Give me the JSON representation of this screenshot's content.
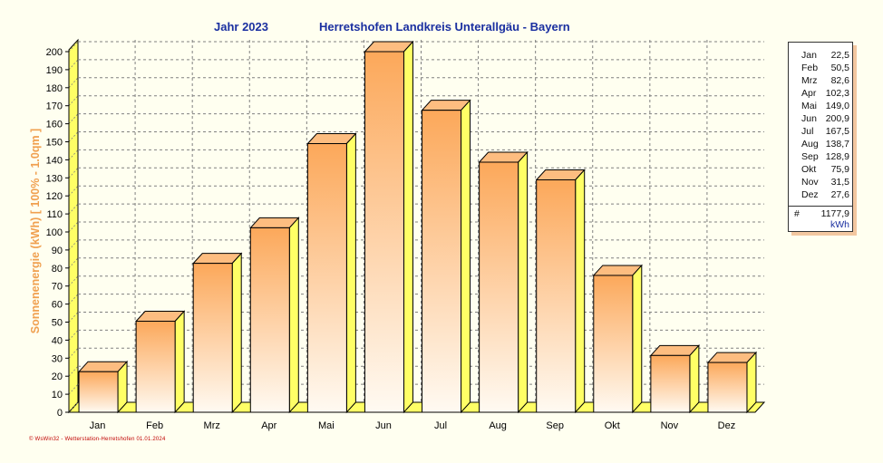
{
  "title": {
    "year": "Jahr  2023",
    "location": "Herretshofen Landkreis Unterallgäu - Bayern"
  },
  "footer": "© WsWin32  -  Wetterstation-Herretshofen  01.01.2024",
  "colors": {
    "title": "#1a2fa0",
    "ylabel": "#f0a050",
    "bar_top": "#fca85a",
    "bar_bottom": "#fffaf2",
    "floor": "#ffff66",
    "footer": "#c00000"
  },
  "chart_data": {
    "type": "bar",
    "categories": [
      "Jan",
      "Feb",
      "Mrz",
      "Apr",
      "Mai",
      "Jun",
      "Jul",
      "Aug",
      "Sep",
      "Okt",
      "Nov",
      "Dez"
    ],
    "values": [
      22.5,
      50.5,
      82.6,
      102.3,
      149.0,
      200.9,
      167.5,
      138.7,
      128.9,
      75.9,
      31.5,
      27.6
    ],
    "ylabel": "Sonnenenergie   (kWh)   [ 100% - 1.0qm ]",
    "ylim": [
      0,
      200
    ],
    "yticks": [
      0,
      10,
      20,
      30,
      40,
      50,
      60,
      70,
      80,
      90,
      100,
      110,
      120,
      130,
      140,
      150,
      160,
      170,
      180,
      190,
      200
    ],
    "grid": true,
    "legend_position": "right"
  },
  "legend": {
    "rows": [
      {
        "month": "Jan",
        "value": "22,5"
      },
      {
        "month": "Feb",
        "value": "50,5"
      },
      {
        "month": "Mrz",
        "value": "82,6"
      },
      {
        "month": "Apr",
        "value": "102,3"
      },
      {
        "month": "Mai",
        "value": "149,0"
      },
      {
        "month": "Jun",
        "value": "200,9"
      },
      {
        "month": "Jul",
        "value": "167,5"
      },
      {
        "month": "Aug",
        "value": "138,7"
      },
      {
        "month": "Sep",
        "value": "128,9"
      },
      {
        "month": "Okt",
        "value": "75,9"
      },
      {
        "month": "Nov",
        "value": "31,5"
      },
      {
        "month": "Dez",
        "value": "27,6"
      }
    ],
    "total_symbol": "#",
    "total_value": "1177,9",
    "unit": "kWh"
  }
}
